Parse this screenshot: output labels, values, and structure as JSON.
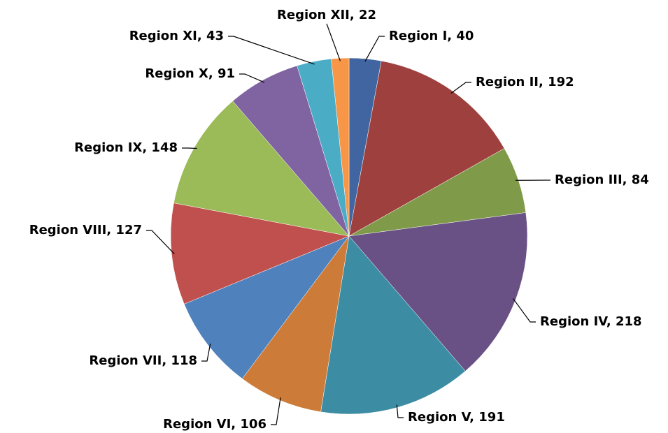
{
  "chart_data": {
    "type": "pie",
    "categories": [
      "Region I",
      "Region II",
      "Region III",
      "Region IV",
      "Region V",
      "Region VI",
      "Region VII",
      "Region VIII",
      "Region IX",
      "Region X",
      "Region XI",
      "Region XII"
    ],
    "values": [
      40,
      192,
      84,
      218,
      191,
      106,
      118,
      127,
      148,
      91,
      43,
      22
    ],
    "value_labels": [
      "Region I, 40",
      "Region II, 192",
      "Region III, 84",
      "Region IV, 218",
      "Region V, 191",
      "Region VI, 106",
      "Region VII, 118",
      "Region VIII, 127",
      "Region IX, 148",
      "Region X, 91",
      "Region XI, 43",
      "Region XII, 22"
    ],
    "colors": [
      "#4065a0",
      "#9e413e",
      "#7f9a48",
      "#695185",
      "#3c8da3",
      "#cc7b38",
      "#4f81bd",
      "#c0504d",
      "#9bbb59",
      "#8064a2",
      "#4bacc6",
      "#f79646"
    ]
  }
}
